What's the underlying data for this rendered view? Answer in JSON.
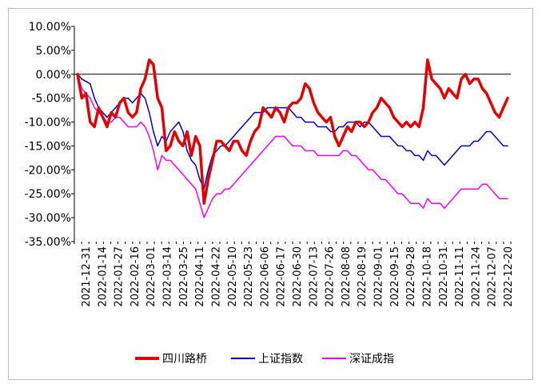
{
  "chart_data": {
    "type": "line",
    "title": "",
    "xlabel": "",
    "ylabel": "",
    "ylim": [
      -35,
      10
    ],
    "y_unit": "%",
    "y_ticks": [
      10,
      5,
      0,
      -5,
      -10,
      -15,
      -20,
      -25,
      -30,
      -35
    ],
    "y_tick_labels": [
      "10.00%",
      "5.00%",
      "0.00%",
      "-5.00%",
      "-10.00%",
      "-15.00%",
      "-20.00%",
      "-25.00%",
      "-30.00%",
      "-35.00%"
    ],
    "x_tick_labels": [
      "2021-12-31",
      "2022-01-14",
      "2022-01-27",
      "2022-02-16",
      "2022-03-01",
      "2022-03-14",
      "2022-03-25",
      "2022-04-11",
      "2022-04-22",
      "2022-05-10",
      "2022-05-23",
      "2022-06-06",
      "2022-06-17",
      "2022-06-30",
      "2022-07-13",
      "2022-07-26",
      "2022-08-08",
      "2022-08-19",
      "2022-09-01",
      "2022-09-15",
      "2022-09-28",
      "2022-10-18",
      "2022-10-31",
      "2022-11-11",
      "2022-11-24",
      "2022-12-07",
      "2022-12-20"
    ],
    "legend_position": "bottom",
    "grid": false,
    "series": [
      {
        "name": "四川路桥",
        "color": "#e00000",
        "values": [
          0,
          -5,
          -4,
          -10,
          -11,
          -7,
          -9,
          -11,
          -8,
          -9,
          -6,
          -5,
          -8,
          -9,
          -8,
          -3,
          -1,
          3,
          2,
          -5,
          -7,
          -16,
          -15,
          -12,
          -14,
          -15,
          -12,
          -17,
          -13,
          -15,
          -27,
          -22,
          -18,
          -14,
          -14,
          -15,
          -16,
          -14,
          -14,
          -16,
          -17,
          -14,
          -12,
          -11,
          -7,
          -8,
          -9,
          -7,
          -8,
          -10,
          -7,
          -6,
          -6,
          -5,
          -2,
          -3,
          -6,
          -8,
          -9,
          -10,
          -9,
          -13,
          -15,
          -13,
          -11,
          -12,
          -10,
          -10,
          -11,
          -10,
          -8,
          -7,
          -5,
          -6,
          -7,
          -9,
          -10,
          -11,
          -10,
          -11,
          -10,
          -11,
          -7,
          3,
          -1,
          -2,
          -3,
          -5,
          -3,
          -4,
          -5,
          -1,
          0,
          -2,
          -1,
          -1,
          -3,
          -4,
          -6,
          -8,
          -9,
          -7,
          -5
        ]
      },
      {
        "name": "上证指数",
        "color": "#0000c8",
        "values": [
          0,
          -1,
          -1.5,
          -2,
          -5,
          -7,
          -8,
          -9,
          -8,
          -7,
          -6,
          -5,
          -5,
          -6,
          -5,
          -4,
          -5,
          -8,
          -12,
          -15,
          -13,
          -14,
          -12,
          -11,
          -10,
          -12,
          -16,
          -18,
          -19,
          -22,
          -24,
          -20,
          -17,
          -16,
          -15,
          -15,
          -14,
          -13,
          -12,
          -11,
          -10,
          -9,
          -8,
          -8,
          -8,
          -7,
          -7,
          -7,
          -7,
          -7,
          -7,
          -8,
          -9,
          -9,
          -10,
          -10,
          -10,
          -11,
          -11,
          -11,
          -12,
          -12,
          -11,
          -11,
          -10,
          -10,
          -10,
          -11,
          -10,
          -10,
          -11,
          -12,
          -13,
          -13,
          -13,
          -14,
          -15,
          -15,
          -16,
          -16,
          -17,
          -17,
          -18,
          -16,
          -17,
          -17,
          -18,
          -19,
          -18,
          -17,
          -16,
          -15,
          -15,
          -15,
          -14,
          -14,
          -13,
          -12,
          -12,
          -13,
          -14,
          -15,
          -15
        ]
      },
      {
        "name": "深证成指",
        "color": "#ff00ff",
        "values": [
          0,
          -3,
          -4,
          -5,
          -7,
          -8,
          -9,
          -10,
          -10,
          -9,
          -9,
          -10,
          -11,
          -11,
          -11,
          -10,
          -11,
          -13,
          -16,
          -20,
          -17,
          -18,
          -18,
          -19,
          -20,
          -21,
          -22,
          -23,
          -24,
          -27,
          -30,
          -28,
          -26,
          -25,
          -25,
          -24,
          -24,
          -23,
          -22,
          -21,
          -20,
          -19,
          -18,
          -17,
          -16,
          -15,
          -14,
          -13,
          -13,
          -13,
          -14,
          -15,
          -15,
          -15,
          -16,
          -16,
          -16,
          -17,
          -17,
          -17,
          -17,
          -17,
          -17,
          -16,
          -16,
          -17,
          -17,
          -18,
          -19,
          -20,
          -20,
          -21,
          -22,
          -22,
          -23,
          -24,
          -25,
          -25,
          -26,
          -27,
          -27,
          -27,
          -28,
          -26,
          -27,
          -27,
          -27,
          -28,
          -27,
          -26,
          -25,
          -24,
          -24,
          -24,
          -24,
          -24,
          -23,
          -23,
          -24,
          -25,
          -26,
          -26,
          -26
        ]
      }
    ]
  }
}
